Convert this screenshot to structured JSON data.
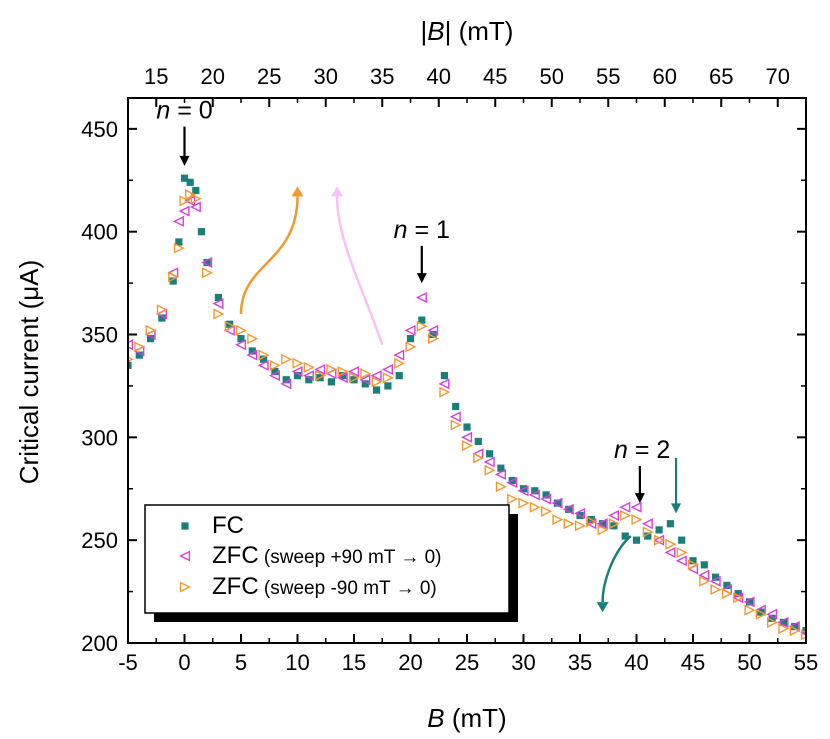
{
  "chart_data": {
    "type": "scatter",
    "xlabel": {
      "italic": "B",
      "rest": " (mT)"
    },
    "x2label": {
      "pre": "|",
      "italic": "B",
      "post": "| (mT)"
    },
    "ylabel": "Critical current (μA)",
    "xlim": [
      -5,
      55
    ],
    "ylim": [
      200,
      465
    ],
    "xticks": [
      "-5",
      "0",
      "5",
      "10",
      "15",
      "20",
      "25",
      "30",
      "35",
      "40",
      "45",
      "50",
      "55"
    ],
    "yticks": [
      "200",
      "250",
      "300",
      "350",
      "400",
      "450"
    ],
    "x2ticks": [
      "15",
      "20",
      "25",
      "30",
      "35",
      "40",
      "45",
      "50",
      "55",
      "60",
      "65",
      "70"
    ],
    "x2_offset_mT": 17.5,
    "x2_scale": 1.0,
    "grid": false,
    "legend_position": "bottom-left",
    "colors": {
      "FC": "#1a7f7a",
      "ZFC_plus": "#d63fdc",
      "ZFC_minus": "#f2992e",
      "arrow": "#000000"
    },
    "series": [
      {
        "name": "FC",
        "note": "",
        "marker": "square",
        "color": "#1a7f7a",
        "points": [
          [
            -5,
            335
          ],
          [
            -4,
            340
          ],
          [
            -3,
            348
          ],
          [
            -2,
            358
          ],
          [
            -1,
            376
          ],
          [
            -0.5,
            395
          ],
          [
            0,
            426
          ],
          [
            0.5,
            424
          ],
          [
            1,
            420
          ],
          [
            1.5,
            400
          ],
          [
            2,
            385
          ],
          [
            3,
            368
          ],
          [
            4,
            355
          ],
          [
            5,
            348
          ],
          [
            6,
            342
          ],
          [
            7,
            338
          ],
          [
            8,
            332
          ],
          [
            9,
            328
          ],
          [
            10,
            330
          ],
          [
            11,
            328
          ],
          [
            12,
            329
          ],
          [
            13,
            327
          ],
          [
            14,
            330
          ],
          [
            15,
            328
          ],
          [
            16,
            326
          ],
          [
            17,
            323
          ],
          [
            18,
            325
          ],
          [
            19,
            330
          ],
          [
            20,
            348
          ],
          [
            21,
            357
          ],
          [
            22,
            350
          ],
          [
            23,
            330
          ],
          [
            24,
            315
          ],
          [
            25,
            305
          ],
          [
            26,
            298
          ],
          [
            27,
            292
          ],
          [
            28,
            285
          ],
          [
            29,
            279
          ],
          [
            30,
            275
          ],
          [
            31,
            274
          ],
          [
            32,
            272
          ],
          [
            33,
            268
          ],
          [
            34,
            265
          ],
          [
            35,
            262
          ],
          [
            36,
            260
          ],
          [
            37,
            258
          ],
          [
            38,
            257
          ],
          [
            39,
            252
          ],
          [
            40,
            250
          ],
          [
            41,
            252
          ],
          [
            42,
            255
          ],
          [
            43,
            258
          ],
          [
            44,
            250
          ],
          [
            45,
            240
          ],
          [
            46,
            238
          ],
          [
            47,
            232
          ],
          [
            48,
            228
          ],
          [
            49,
            224
          ],
          [
            50,
            220
          ],
          [
            51,
            215
          ],
          [
            52,
            212
          ],
          [
            53,
            210
          ],
          [
            54,
            208
          ],
          [
            55,
            206
          ]
        ]
      },
      {
        "name": "ZFC",
        "note": " (sweep +90 mT → 0)",
        "marker": "triangle-left",
        "color": "#d63fdc",
        "points": [
          [
            -5,
            345
          ],
          [
            -4,
            342
          ],
          [
            -3,
            350
          ],
          [
            -2,
            360
          ],
          [
            -1,
            380
          ],
          [
            -0.5,
            405
          ],
          [
            0,
            410
          ],
          [
            0.5,
            415
          ],
          [
            1,
            412
          ],
          [
            2,
            385
          ],
          [
            3,
            365
          ],
          [
            4,
            352
          ],
          [
            5,
            345
          ],
          [
            6,
            340
          ],
          [
            7,
            335
          ],
          [
            8,
            330
          ],
          [
            9,
            326
          ],
          [
            10,
            332
          ],
          [
            11,
            330
          ],
          [
            12,
            333
          ],
          [
            13,
            331
          ],
          [
            14,
            329
          ],
          [
            15,
            332
          ],
          [
            16,
            328
          ],
          [
            17,
            330
          ],
          [
            18,
            333
          ],
          [
            19,
            340
          ],
          [
            20,
            352
          ],
          [
            21,
            368
          ],
          [
            22,
            352
          ],
          [
            23,
            326
          ],
          [
            24,
            310
          ],
          [
            25,
            300
          ],
          [
            26,
            292
          ],
          [
            27,
            288
          ],
          [
            28,
            282
          ],
          [
            29,
            278
          ],
          [
            30,
            274
          ],
          [
            31,
            272
          ],
          [
            32,
            270
          ],
          [
            33,
            268
          ],
          [
            34,
            265
          ],
          [
            35,
            263
          ],
          [
            36,
            258
          ],
          [
            37,
            258
          ],
          [
            38,
            262
          ],
          [
            39,
            266
          ],
          [
            40,
            266
          ],
          [
            41,
            258
          ],
          [
            42,
            250
          ],
          [
            43,
            244
          ],
          [
            44,
            240
          ],
          [
            45,
            236
          ],
          [
            46,
            233
          ],
          [
            47,
            230
          ],
          [
            48,
            226
          ],
          [
            49,
            222
          ],
          [
            50,
            220
          ],
          [
            51,
            216
          ],
          [
            52,
            214
          ],
          [
            53,
            210
          ],
          [
            54,
            208
          ],
          [
            55,
            205
          ]
        ]
      },
      {
        "name": "ZFC",
        "note": " (sweep  -90 mT → 0)",
        "marker": "triangle-right",
        "color": "#f2992e",
        "points": [
          [
            -5,
            338
          ],
          [
            -4,
            344
          ],
          [
            -3,
            352
          ],
          [
            -2,
            362
          ],
          [
            -1,
            378
          ],
          [
            -0.5,
            392
          ],
          [
            0,
            415
          ],
          [
            0.5,
            418
          ],
          [
            1,
            416
          ],
          [
            2,
            380
          ],
          [
            3,
            360
          ],
          [
            4,
            354
          ],
          [
            5,
            352
          ],
          [
            6,
            348
          ],
          [
            7,
            340
          ],
          [
            8,
            335
          ],
          [
            9,
            338
          ],
          [
            10,
            336
          ],
          [
            11,
            334
          ],
          [
            12,
            330
          ],
          [
            13,
            333
          ],
          [
            14,
            332
          ],
          [
            15,
            329
          ],
          [
            16,
            331
          ],
          [
            17,
            327
          ],
          [
            18,
            329
          ],
          [
            19,
            336
          ],
          [
            20,
            344
          ],
          [
            21,
            354
          ],
          [
            22,
            348
          ],
          [
            23,
            322
          ],
          [
            24,
            306
          ],
          [
            25,
            296
          ],
          [
            26,
            290
          ],
          [
            27,
            284
          ],
          [
            28,
            276
          ],
          [
            29,
            270
          ],
          [
            30,
            268
          ],
          [
            31,
            266
          ],
          [
            32,
            264
          ],
          [
            33,
            260
          ],
          [
            34,
            258
          ],
          [
            35,
            257
          ],
          [
            36,
            259
          ],
          [
            37,
            255
          ],
          [
            38,
            258
          ],
          [
            39,
            262
          ],
          [
            40,
            260
          ],
          [
            41,
            254
          ],
          [
            42,
            250
          ],
          [
            43,
            248
          ],
          [
            44,
            244
          ],
          [
            45,
            238
          ],
          [
            46,
            230
          ],
          [
            47,
            226
          ],
          [
            48,
            224
          ],
          [
            49,
            222
          ],
          [
            50,
            216
          ],
          [
            51,
            214
          ],
          [
            52,
            210
          ],
          [
            53,
            207
          ],
          [
            54,
            206
          ],
          [
            55,
            204
          ]
        ]
      }
    ],
    "annotations": [
      {
        "italic": "n",
        "rest": " = 0",
        "x": 0,
        "y": 455,
        "arrow_to": [
          0,
          432
        ]
      },
      {
        "italic": "n",
        "rest": " = 1",
        "x": 21,
        "y": 397,
        "arrow_to": [
          21,
          375
        ]
      },
      {
        "italic": "n",
        "rest": " = 2",
        "x": 40.5,
        "y": 290,
        "arrow_to": [
          40.3,
          268
        ]
      }
    ],
    "extra_arrows": [
      {
        "color": "#1a7f7a",
        "x": 43.5,
        "y": 290,
        "arrow_to": [
          43.5,
          263
        ]
      }
    ],
    "curved_arrows": [
      {
        "color": "#f2992e",
        "from": [
          5,
          360
        ],
        "ctrl1": [
          5,
          385
        ],
        "ctrl2": [
          10,
          385
        ],
        "to": [
          10,
          422
        ]
      },
      {
        "color": "#f7c1f8",
        "from": [
          17.5,
          345
        ],
        "ctrl1": [
          16,
          370
        ],
        "ctrl2": [
          13.5,
          395
        ],
        "to": [
          13.5,
          422
        ]
      },
      {
        "color": "#1a7f7a",
        "from": [
          39.5,
          252
        ],
        "ctrl1": [
          38,
          245
        ],
        "ctrl2": [
          37,
          230
        ],
        "to": [
          37,
          215
        ]
      }
    ]
  }
}
